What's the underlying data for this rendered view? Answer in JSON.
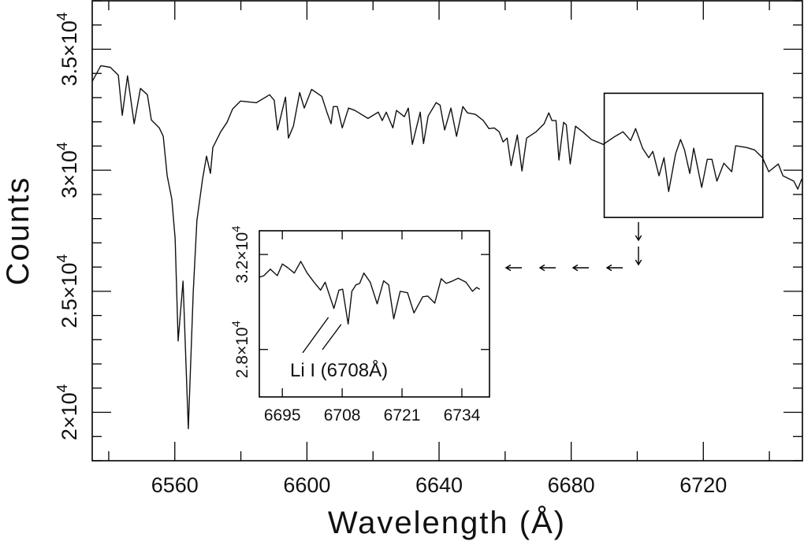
{
  "chart_data": [
    {
      "type": "line",
      "panel": "main",
      "xlabel": "Wavelength (Å)",
      "ylabel": "Counts",
      "xlim": [
        6535,
        6750
      ],
      "ylim": [
        18000,
        37000
      ],
      "xticks": {
        "major": [
          6560,
          6600,
          6640,
          6680,
          6720
        ],
        "labels": [
          "6560",
          "6600",
          "6640",
          "6680",
          "6720"
        ],
        "minor_step": 20
      },
      "yticks": {
        "major": [
          20000,
          25000,
          30000,
          35000
        ],
        "labels": [
          {
            "base": "2×10",
            "exp": "4"
          },
          {
            "base": "2.5×10",
            "exp": "4"
          },
          {
            "base": "3×10",
            "exp": "4"
          },
          {
            "base": "3.5×10",
            "exp": "4"
          }
        ],
        "minor_step": 1000
      },
      "grid": false,
      "zoom_region": {
        "x": [
          6690,
          6738
        ],
        "y": [
          28050,
          33180
        ]
      },
      "series": [
        {
          "x": [
            6535.0,
            6537.6,
            6540.5,
            6542.9,
            6544.1,
            6545.7,
            6547.7,
            6549.6,
            6551.7,
            6552.9,
            6555.3,
            6556.5,
            6557.7,
            6559.1,
            6560.1,
            6561.0,
            6562.5,
            6564.1,
            6565.6,
            6566.7,
            6568.4,
            6569.6,
            6570.8,
            6571.5,
            6573.9,
            6575.8,
            6577.5,
            6579.9,
            6584.7,
            6588.7,
            6590.1,
            6591.1,
            6593.5,
            6594.4,
            6595.9,
            6597.8,
            6599.2,
            6601.4,
            6604.5,
            6606.1,
            6607.3,
            6608.0,
            6609.2,
            6610.7,
            6612.6,
            6614.5,
            6618.5,
            6621.6,
            6622.8,
            6624.0,
            6626.0,
            6627.1,
            6629.5,
            6630.7,
            6631.9,
            6634.3,
            6635.3,
            6636.7,
            6639.1,
            6640.3,
            6641.7,
            6643.6,
            6645.3,
            6647.2,
            6648.6,
            6651.0,
            6653.4,
            6655.1,
            6656.7,
            6658.2,
            6659.4,
            6660.6,
            6661.8,
            6663.7,
            6665.1,
            6666.5,
            6669.4,
            6671.8,
            6673.2,
            6674.2,
            6675.4,
            6676.3,
            6677.7,
            6678.5,
            6679.7,
            6681.3,
            6683.7,
            6686.1,
            6689.7,
            6693.3,
            6695.7,
            6698.0,
            6699.5,
            6701.6,
            6703.5,
            6704.7,
            6706.6,
            6708.1,
            6709.5,
            6711.6,
            6713.1,
            6714.3,
            6715.9,
            6717.1,
            6719.5,
            6721.2,
            6722.6,
            6724.1,
            6726.2,
            6728.6,
            6729.8,
            6733.1,
            6735.5,
            6737.9,
            6739.8,
            6742.7,
            6744.1,
            6747.4,
            6748.6,
            6749.8
          ],
          "y": [
            33670,
            34320,
            34250,
            33930,
            32270,
            33900,
            31920,
            33380,
            33120,
            32080,
            31750,
            31400,
            29770,
            28800,
            27170,
            22950,
            25420,
            19320,
            25000,
            27920,
            29640,
            30580,
            29870,
            30940,
            31590,
            31980,
            32530,
            32860,
            32790,
            33120,
            32890,
            31660,
            33020,
            31330,
            31820,
            33210,
            32570,
            33340,
            33050,
            32370,
            31920,
            32630,
            32630,
            31750,
            32570,
            32470,
            32140,
            32400,
            32050,
            32400,
            31750,
            32470,
            32210,
            32570,
            31070,
            32400,
            31100,
            32240,
            32790,
            32690,
            31660,
            32570,
            31400,
            32630,
            32370,
            32310,
            32050,
            31720,
            31750,
            31590,
            31170,
            31330,
            30190,
            31460,
            29970,
            31330,
            31590,
            31920,
            32370,
            32050,
            32050,
            30420,
            31980,
            31880,
            30260,
            31820,
            31560,
            31270,
            31070,
            31400,
            31590,
            31230,
            31720,
            30910,
            30520,
            30780,
            29770,
            30520,
            29120,
            30680,
            31270,
            30840,
            29870,
            30910,
            29290,
            30450,
            30450,
            29550,
            30290,
            29940,
            31010,
            30940,
            30840,
            30520,
            29940,
            30260,
            29770,
            29550,
            29220,
            29640
          ]
        }
      ]
    },
    {
      "type": "line",
      "panel": "inset",
      "xlim": [
        6690,
        6740
      ],
      "ylim": [
        26000,
        33000
      ],
      "xticks": {
        "major": [
          6695,
          6708,
          6721,
          6734
        ],
        "labels": [
          "6695",
          "6708",
          "6721",
          "6734"
        ]
      },
      "yticks": {
        "major": [
          28000,
          32000
        ],
        "labels": [
          {
            "base": "2.8×10",
            "exp": "4"
          },
          {
            "base": "3.2×10",
            "exp": "4"
          }
        ]
      },
      "grid": false,
      "annotation": {
        "text": "Li I (6708Å)",
        "points_to": [
          6706.2,
          6709.3
        ]
      },
      "series": [
        {
          "x": [
            6690.1,
            6691.0,
            6692.4,
            6693.9,
            6695.0,
            6696.2,
            6697.6,
            6699.0,
            6700.4,
            6701.9,
            6703.3,
            6704.3,
            6706.2,
            6707.3,
            6708.1,
            6709.3,
            6710.1,
            6711.0,
            6711.8,
            6712.7,
            6714.1,
            6715.6,
            6717.0,
            6718.1,
            6719.2,
            6720.6,
            6722.2,
            6723.6,
            6725.5,
            6726.6,
            6728.1,
            6729.5,
            6730.6,
            6731.8,
            6733.2,
            6734.9,
            6736.3,
            6737.2,
            6737.9
          ],
          "y": [
            31050,
            31110,
            31380,
            31110,
            31600,
            31440,
            31220,
            31710,
            31220,
            30830,
            30500,
            30830,
            29730,
            30500,
            30540,
            29070,
            30450,
            30720,
            30780,
            31220,
            30830,
            29920,
            30890,
            30720,
            29290,
            30450,
            30390,
            29540,
            30220,
            30250,
            29950,
            30980,
            30780,
            30870,
            31000,
            30830,
            30450,
            30610,
            30540
          ]
        }
      ]
    }
  ]
}
